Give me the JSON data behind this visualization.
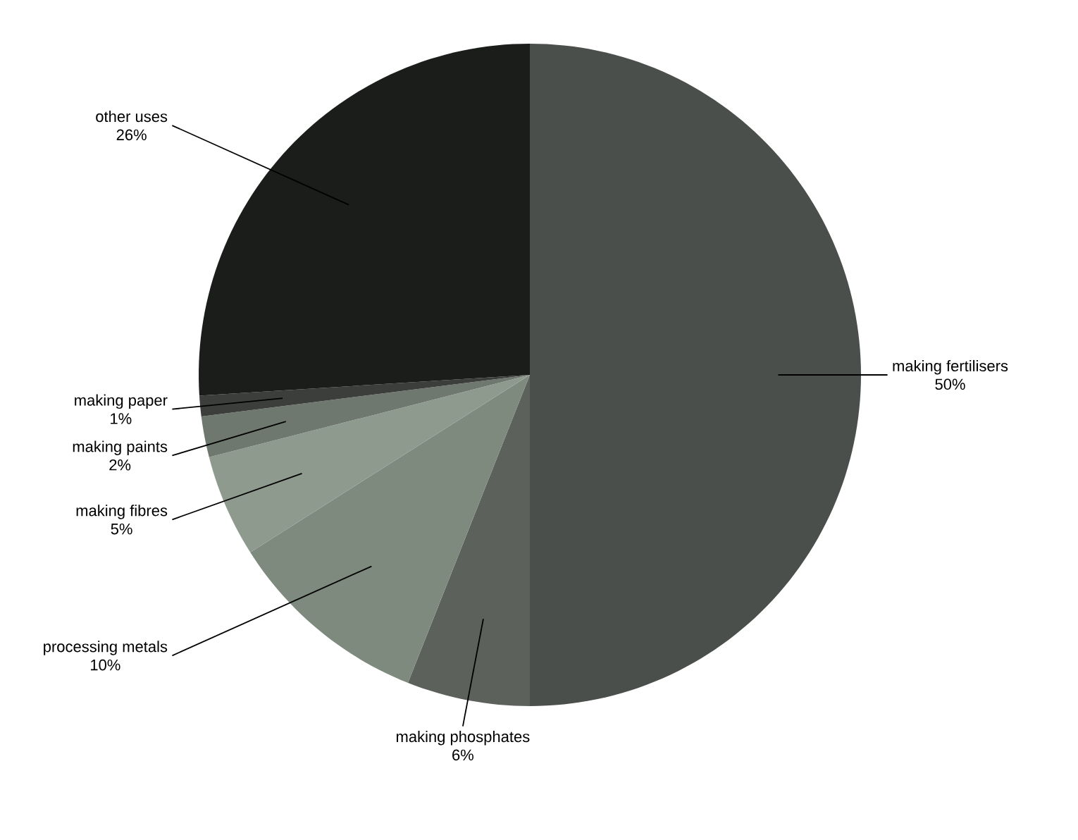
{
  "chart_data": {
    "type": "pie",
    "categories": [
      "making fertilisers",
      "making phosphates",
      "processing metals",
      "making fibres",
      "making paints",
      "making paper",
      "other uses"
    ],
    "values": [
      50,
      6,
      10,
      5,
      2,
      1,
      26
    ],
    "colors": [
      "#4b4f4b",
      "#5c615c",
      "#7e8a7e",
      "#8f9a8f",
      "#6f786f",
      "#3b3e3b",
      "#1b1d1b"
    ],
    "value_labels": [
      "50%",
      "6%",
      "10%",
      "5%",
      "2%",
      "1%",
      "26%"
    ]
  }
}
